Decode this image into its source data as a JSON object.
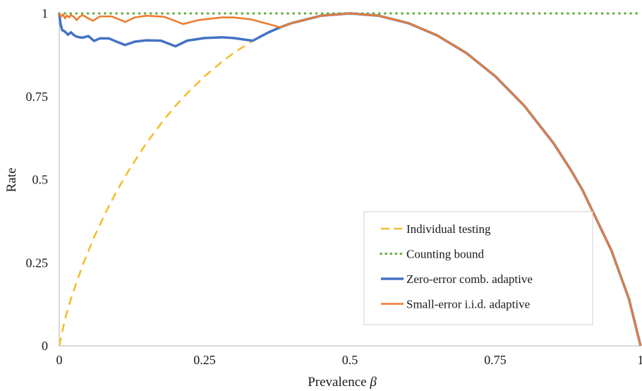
{
  "chart_data": {
    "type": "line",
    "title": "",
    "xlabel": "Prevalence",
    "xlabel_symbol": "β",
    "ylabel": "Rate",
    "xlim": [
      0,
      1
    ],
    "ylim": [
      0,
      1
    ],
    "grid": false,
    "legend_position": "bottom-right",
    "x_ticks": [
      {
        "value": 0,
        "label": "0"
      },
      {
        "value": 0.25,
        "label": "0.25"
      },
      {
        "value": 0.5,
        "label": "0.5"
      },
      {
        "value": 0.75,
        "label": "0.75"
      },
      {
        "value": 1,
        "label": "1"
      }
    ],
    "y_ticks": [
      {
        "value": 0,
        "label": "0"
      },
      {
        "value": 0.25,
        "label": "0.25"
      },
      {
        "value": 0.5,
        "label": "0.5"
      },
      {
        "value": 0.75,
        "label": "0.75"
      },
      {
        "value": 1,
        "label": "1"
      }
    ],
    "series": [
      {
        "name": "Individual testing",
        "color": "#F2BE2F",
        "style": "dashed",
        "x": [
          0,
          0.01,
          0.02,
          0.04,
          0.06,
          0.08,
          0.1,
          0.12,
          0.15,
          0.18,
          0.2,
          0.22,
          0.25,
          0.28,
          0.3,
          0.333,
          0.35,
          0.38
        ],
        "y": [
          0,
          0.081,
          0.141,
          0.242,
          0.327,
          0.402,
          0.469,
          0.529,
          0.61,
          0.68,
          0.722,
          0.76,
          0.811,
          0.855,
          0.881,
          0.918,
          0.934,
          0.958
        ]
      },
      {
        "name": "Counting bound",
        "color": "#6AAF45",
        "style": "dotted",
        "x": [
          0,
          0.2,
          0.4,
          0.5,
          0.6,
          0.8,
          1
        ],
        "y": [
          1,
          1,
          1,
          1,
          1,
          1,
          1
        ]
      },
      {
        "name": "Zero-error comb. adaptive",
        "color": "#4472C4",
        "style": "solid",
        "x": [
          0,
          0.002,
          0.005,
          0.01,
          0.015,
          0.02,
          0.025,
          0.03,
          0.035,
          0.04,
          0.05,
          0.06,
          0.07,
          0.085,
          0.1,
          0.113,
          0.13,
          0.15,
          0.175,
          0.2,
          0.22,
          0.25,
          0.28,
          0.3,
          0.32,
          0.333,
          0.36,
          0.38,
          0.4,
          0.45,
          0.5,
          0.55,
          0.6,
          0.65,
          0.7,
          0.75,
          0.8,
          0.85,
          0.88,
          0.9,
          0.95,
          0.98,
          1
        ],
        "y": [
          1,
          0.97,
          0.95,
          0.945,
          0.936,
          0.943,
          0.935,
          0.93,
          0.928,
          0.927,
          0.932,
          0.917,
          0.925,
          0.925,
          0.914,
          0.905,
          0.915,
          0.919,
          0.918,
          0.901,
          0.918,
          0.926,
          0.928,
          0.926,
          0.921,
          0.918,
          0.943,
          0.958,
          0.971,
          0.993,
          1,
          0.993,
          0.971,
          0.934,
          0.881,
          0.811,
          0.722,
          0.61,
          0.529,
          0.469,
          0.286,
          0.141,
          0
        ]
      },
      {
        "name": "Small-error i.i.d. adaptive",
        "color": "#ED7D31",
        "style": "solid",
        "x": [
          0,
          0.003,
          0.006,
          0.01,
          0.013,
          0.017,
          0.02,
          0.025,
          0.03,
          0.035,
          0.04,
          0.05,
          0.058,
          0.07,
          0.09,
          0.11,
          0.113,
          0.13,
          0.15,
          0.18,
          0.2,
          0.213,
          0.24,
          0.28,
          0.3,
          0.33,
          0.36,
          0.38,
          0.4,
          0.45,
          0.5,
          0.55,
          0.6,
          0.65,
          0.7,
          0.75,
          0.8,
          0.85,
          0.88,
          0.9,
          0.95,
          0.98,
          1
        ],
        "y": [
          1,
          0.99,
          0.997,
          0.985,
          0.994,
          0.988,
          0.995,
          0.99,
          0.98,
          0.99,
          0.995,
          0.985,
          0.978,
          0.991,
          0.991,
          0.977,
          0.974,
          0.988,
          0.993,
          0.99,
          0.977,
          0.968,
          0.98,
          0.988,
          0.988,
          0.982,
          0.968,
          0.958,
          0.971,
          0.993,
          1,
          0.993,
          0.971,
          0.934,
          0.881,
          0.811,
          0.722,
          0.61,
          0.529,
          0.469,
          0.286,
          0.141,
          0
        ]
      }
    ]
  }
}
